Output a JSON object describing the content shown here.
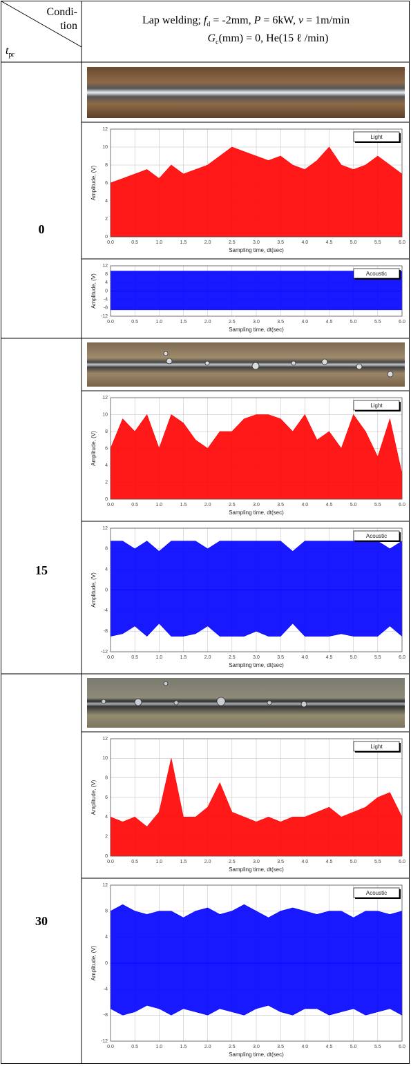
{
  "table": {
    "corner": {
      "top1": "Condi-",
      "top2": "tion",
      "bottom": "t",
      "bottom_sub": "pr"
    },
    "header": {
      "line1": [
        "Lap welding; ",
        "f",
        "d",
        " = -2mm, ",
        "P",
        " = 6kW, ",
        "v",
        " = 1m/min"
      ],
      "line2": [
        "G",
        "c",
        "(mm) = 0, He(15 ℓ /min)"
      ]
    },
    "rows": [
      {
        "label": "0"
      },
      {
        "label": "15"
      },
      {
        "label": "30"
      }
    ]
  },
  "chart_data": [
    {
      "type": "area",
      "xlabel": "Sampling time, dt(sec)",
      "ylabel": "Amplitude, (V)",
      "grid": true,
      "legend": "upper-right",
      "xlim": [
        0,
        6
      ],
      "ylim": [
        0,
        12
      ],
      "xticks": [
        {
          "value": 0,
          "label": "0.0"
        },
        {
          "value": 0.5,
          "label": "0.5"
        },
        {
          "value": 1,
          "label": "1.0"
        },
        {
          "value": 1.5,
          "label": "1.5"
        },
        {
          "value": 2,
          "label": "2.0"
        },
        {
          "value": 2.5,
          "label": "2.5"
        },
        {
          "value": 3,
          "label": "3.0"
        },
        {
          "value": 3.5,
          "label": "3.5"
        },
        {
          "value": 4,
          "label": "4.0"
        },
        {
          "value": 4.5,
          "label": "4.5"
        },
        {
          "value": 5,
          "label": "5.0"
        },
        {
          "value": 5.5,
          "label": "5.5"
        },
        {
          "value": 6,
          "label": "6.0"
        }
      ],
      "yticks": [
        0,
        2,
        4,
        6,
        8,
        10,
        12
      ],
      "x": [
        0,
        0.25,
        0.5,
        0.75,
        1,
        1.25,
        1.5,
        1.75,
        2,
        2.25,
        2.5,
        2.75,
        3,
        3.25,
        3.5,
        3.75,
        4,
        4.25,
        4.5,
        4.75,
        5,
        5.25,
        5.5,
        5.75,
        6
      ],
      "series": [
        {
          "name": "Light",
          "color": "#ff0000",
          "values": [
            6,
            6.5,
            7,
            7.5,
            6.5,
            8,
            7,
            7.5,
            8,
            9,
            10,
            9.5,
            9,
            8.5,
            9,
            8,
            7.5,
            8.5,
            10,
            8,
            7.5,
            8,
            9,
            8,
            7
          ]
        }
      ]
    },
    {
      "type": "area",
      "xlabel": "Sampling time, dt(sec)",
      "ylabel": "Amplitude, (V)",
      "grid": true,
      "legend": "upper-right",
      "xlim": [
        0,
        6
      ],
      "ylim": [
        -12,
        12
      ],
      "xticks": [
        {
          "value": 0,
          "label": "0.0"
        },
        {
          "value": 0.5,
          "label": "0.5"
        },
        {
          "value": 1,
          "label": "1.0"
        },
        {
          "value": 1.5,
          "label": "1.5"
        },
        {
          "value": 2,
          "label": "2.0"
        },
        {
          "value": 2.5,
          "label": "2.5"
        },
        {
          "value": 3,
          "label": "3.0"
        },
        {
          "value": 3.5,
          "label": "3.5"
        },
        {
          "value": 4,
          "label": "4.0"
        },
        {
          "value": 4.5,
          "label": "4.5"
        },
        {
          "value": 5,
          "label": "5.0"
        },
        {
          "value": 5.5,
          "label": "5.5"
        },
        {
          "value": 6,
          "label": "6.0"
        }
      ],
      "yticks": [
        -12,
        -8,
        -4,
        0,
        4,
        8,
        12
      ],
      "x": [
        0,
        0.25,
        0.5,
        0.75,
        1,
        1.25,
        1.5,
        1.75,
        2,
        2.25,
        2.5,
        2.75,
        3,
        3.25,
        3.5,
        3.75,
        4,
        4.25,
        4.5,
        4.75,
        5,
        5.25,
        5.5,
        5.75,
        6
      ],
      "series": [
        {
          "name": "Acoustic",
          "color": "#0000ff",
          "values": [
            9.5,
            9.5,
            9.5,
            9.5,
            9.5,
            9.5,
            9.5,
            9.5,
            9.5,
            9.5,
            9.5,
            9.5,
            9.5,
            9.5,
            9.5,
            9.5,
            9.5,
            9.5,
            9.5,
            9.5,
            9.5,
            9.5,
            9.5,
            9.5,
            9.5
          ],
          "min_values": [
            -9,
            -9,
            -9,
            -9,
            -9,
            -9,
            -9,
            -9,
            -9,
            -9,
            -9,
            -9,
            -9,
            -9,
            -9,
            -9,
            -9,
            -9,
            -9,
            -9,
            -9,
            -9,
            -9,
            -9,
            -9
          ]
        }
      ]
    },
    {
      "type": "area",
      "xlabel": "Sampling time, dt(sec)",
      "ylabel": "Amplitude, (V)",
      "grid": true,
      "legend": "upper-right",
      "xlim": [
        0,
        6
      ],
      "ylim": [
        0,
        12
      ],
      "xticks": [
        {
          "value": 0,
          "label": "0.0"
        },
        {
          "value": 0.5,
          "label": "0.5"
        },
        {
          "value": 1,
          "label": "1.0"
        },
        {
          "value": 1.5,
          "label": "1.5"
        },
        {
          "value": 2,
          "label": "2.0"
        },
        {
          "value": 2.5,
          "label": "2.5"
        },
        {
          "value": 3,
          "label": "3.0"
        },
        {
          "value": 3.5,
          "label": "3.5"
        },
        {
          "value": 4,
          "label": "4.0"
        },
        {
          "value": 4.5,
          "label": "4.5"
        },
        {
          "value": 5,
          "label": "5.0"
        },
        {
          "value": 5.5,
          "label": "5.5"
        },
        {
          "value": 6,
          "label": "6.0"
        }
      ],
      "yticks": [
        0,
        2,
        4,
        6,
        8,
        10,
        12
      ],
      "x": [
        0,
        0.25,
        0.5,
        0.75,
        1,
        1.25,
        1.5,
        1.75,
        2,
        2.25,
        2.5,
        2.75,
        3,
        3.25,
        3.5,
        3.75,
        4,
        4.25,
        4.5,
        4.75,
        5,
        5.25,
        5.5,
        5.75,
        6
      ],
      "series": [
        {
          "name": "Light",
          "color": "#ff0000",
          "values": [
            6,
            9.5,
            8,
            10,
            6,
            10,
            9,
            7,
            6,
            8,
            8,
            9.5,
            10,
            10,
            9.5,
            8,
            10,
            7,
            8,
            6,
            10,
            8,
            5,
            9.5,
            3
          ]
        }
      ]
    },
    {
      "type": "area",
      "xlabel": "Sampling time, dt(sec)",
      "ylabel": "Amplitude, (V)",
      "grid": true,
      "legend": "upper-right",
      "xlim": [
        0,
        6
      ],
      "ylim": [
        -12,
        12
      ],
      "xticks": [
        {
          "value": 0,
          "label": "0.0"
        },
        {
          "value": 0.5,
          "label": "0.5"
        },
        {
          "value": 1,
          "label": "1.0"
        },
        {
          "value": 1.5,
          "label": "1.5"
        },
        {
          "value": 2,
          "label": "2.0"
        },
        {
          "value": 2.5,
          "label": "2.5"
        },
        {
          "value": 3,
          "label": "3.0"
        },
        {
          "value": 3.5,
          "label": "3.5"
        },
        {
          "value": 4,
          "label": "4.0"
        },
        {
          "value": 4.5,
          "label": "4.5"
        },
        {
          "value": 5,
          "label": "5.0"
        },
        {
          "value": 5.5,
          "label": "5.5"
        },
        {
          "value": 6,
          "label": "6.0"
        }
      ],
      "yticks": [
        -12,
        -8,
        -4,
        0,
        4,
        8,
        12
      ],
      "x": [
        0,
        0.25,
        0.5,
        0.75,
        1,
        1.25,
        1.5,
        1.75,
        2,
        2.25,
        2.5,
        2.75,
        3,
        3.25,
        3.5,
        3.75,
        4,
        4.25,
        4.5,
        4.75,
        5,
        5.25,
        5.5,
        5.75,
        6
      ],
      "series": [
        {
          "name": "Acoustic",
          "color": "#0000ff",
          "values": [
            9.5,
            9.5,
            8,
            9.5,
            7.5,
            9.5,
            9.5,
            9.5,
            8,
            9.5,
            9.5,
            9.5,
            9.5,
            9.5,
            9.5,
            7.5,
            9.5,
            9.5,
            9.5,
            9.5,
            9.5,
            9.5,
            9.5,
            8,
            9.5
          ],
          "min_values": [
            -9,
            -8.5,
            -7,
            -9,
            -6.5,
            -9,
            -9,
            -8.5,
            -7,
            -9,
            -9,
            -9,
            -8,
            -9,
            -9,
            -6.5,
            -9,
            -9,
            -9,
            -8.5,
            -9,
            -9,
            -9,
            -7,
            -9
          ]
        }
      ]
    },
    {
      "type": "area",
      "xlabel": "Sampling time, dt(sec)",
      "ylabel": "Amplitude, (V)",
      "grid": true,
      "legend": "upper-right",
      "xlim": [
        0,
        6
      ],
      "ylim": [
        0,
        12
      ],
      "xticks": [
        {
          "value": 0,
          "label": "0.0"
        },
        {
          "value": 0.5,
          "label": "0.5"
        },
        {
          "value": 1,
          "label": "1.0"
        },
        {
          "value": 1.5,
          "label": "1.5"
        },
        {
          "value": 2,
          "label": "2.0"
        },
        {
          "value": 2.5,
          "label": "2.5"
        },
        {
          "value": 3,
          "label": "3.0"
        },
        {
          "value": 3.5,
          "label": "3.5"
        },
        {
          "value": 4,
          "label": "4.0"
        },
        {
          "value": 4.5,
          "label": "4.5"
        },
        {
          "value": 5,
          "label": "5.0"
        },
        {
          "value": 5.5,
          "label": "5.5"
        },
        {
          "value": 6,
          "label": "6.0"
        }
      ],
      "yticks": [
        0,
        2,
        4,
        6,
        8,
        10,
        12
      ],
      "x": [
        0,
        0.25,
        0.5,
        0.75,
        1,
        1.25,
        1.5,
        1.75,
        2,
        2.25,
        2.5,
        2.75,
        3,
        3.25,
        3.5,
        3.75,
        4,
        4.25,
        4.5,
        4.75,
        5,
        5.25,
        5.5,
        5.75,
        6
      ],
      "series": [
        {
          "name": "Light",
          "color": "#ff0000",
          "values": [
            4,
            3.5,
            4,
            3,
            4.5,
            10,
            4,
            4,
            5,
            7.5,
            4.5,
            4,
            3.5,
            4,
            3.5,
            4,
            4,
            4.5,
            5,
            4,
            4.5,
            5,
            6,
            6.5,
            4
          ]
        }
      ]
    },
    {
      "type": "area",
      "xlabel": "Sampling time, dt(sec)",
      "ylabel": "Amplitude, (V)",
      "grid": true,
      "legend": "upper-right",
      "xlim": [
        0,
        6
      ],
      "ylim": [
        -12,
        12
      ],
      "xticks": [
        {
          "value": 0,
          "label": "0.0"
        },
        {
          "value": 0.5,
          "label": "0.5"
        },
        {
          "value": 1,
          "label": "1.0"
        },
        {
          "value": 1.5,
          "label": "1.5"
        },
        {
          "value": 2,
          "label": "2.0"
        },
        {
          "value": 2.5,
          "label": "2.5"
        },
        {
          "value": 3,
          "label": "3.0"
        },
        {
          "value": 3.5,
          "label": "3.5"
        },
        {
          "value": 4,
          "label": "4.0"
        },
        {
          "value": 4.5,
          "label": "4.5"
        },
        {
          "value": 5,
          "label": "5.0"
        },
        {
          "value": 5.5,
          "label": "5.5"
        },
        {
          "value": 6,
          "label": "6.0"
        }
      ],
      "yticks": [
        -12,
        -8,
        -4,
        0,
        4,
        8,
        12
      ],
      "x": [
        0,
        0.25,
        0.5,
        0.75,
        1,
        1.25,
        1.5,
        1.75,
        2,
        2.25,
        2.5,
        2.75,
        3,
        3.25,
        3.5,
        3.75,
        4,
        4.25,
        4.5,
        4.75,
        5,
        5.25,
        5.5,
        5.75,
        6
      ],
      "series": [
        {
          "name": "Acoustic",
          "color": "#0000ff",
          "values": [
            8,
            9,
            8,
            7.5,
            8,
            8,
            7,
            8,
            8.5,
            7.5,
            8,
            9,
            8,
            7,
            8,
            8.5,
            8,
            7.5,
            8,
            8,
            7,
            8,
            8,
            7.5,
            8
          ],
          "min_values": [
            -7,
            -8,
            -7.5,
            -6.5,
            -7,
            -8,
            -7,
            -7.5,
            -8,
            -7,
            -7.5,
            -8,
            -7,
            -6.5,
            -7.5,
            -8,
            -7,
            -7,
            -8,
            -7.5,
            -7,
            -8,
            -7.5,
            -7,
            -8
          ]
        }
      ]
    }
  ]
}
